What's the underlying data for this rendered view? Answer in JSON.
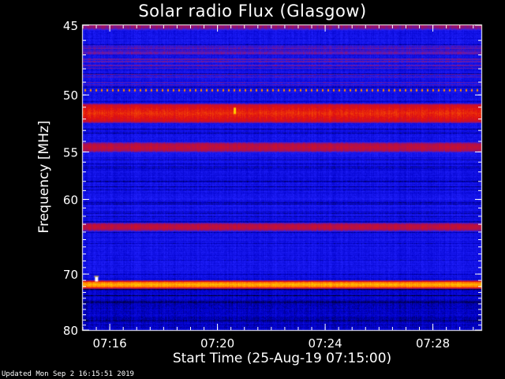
{
  "chart_data": {
    "type": "heatmap",
    "title": "Solar radio Flux (Glasgow)",
    "xlabel": "Start Time (25-Aug-19 07:15:00)",
    "ylabel": "Frequency [MHz]",
    "x_tick_labels": [
      "07:16",
      "07:20",
      "07:24",
      "07:28"
    ],
    "x_ticks_minutes_after_start": [
      1,
      5,
      9,
      13
    ],
    "x_range_minutes_after_start": [
      0,
      14.8
    ],
    "y_tick_labels": [
      "45",
      "50",
      "55",
      "60",
      "70",
      "80"
    ],
    "y_ticks_mhz": [
      45,
      50,
      55,
      60,
      70,
      80
    ],
    "y_range_mhz": [
      45,
      80
    ],
    "y_scale": "reciprocal",
    "colormap": [
      "#000000",
      "#0000c8",
      "#2222ff",
      "#a01060",
      "#e01010",
      "#ff6a00",
      "#ffd000",
      "#ffffff"
    ],
    "emission_bands": [
      {
        "freq_mhz": 45.0,
        "level": "medium"
      },
      {
        "freq_mhz": 49.6,
        "level": "medium-high, dotted"
      },
      {
        "freq_mhz": 51.5,
        "level": "high"
      },
      {
        "freq_mhz": 54.5,
        "level": "medium-high"
      },
      {
        "freq_mhz": 63.3,
        "level": "medium-high"
      },
      {
        "freq_mhz": 71.6,
        "level": "very high"
      }
    ]
  },
  "footer": "Updated Mon Sep  2 16:15:51 2019"
}
